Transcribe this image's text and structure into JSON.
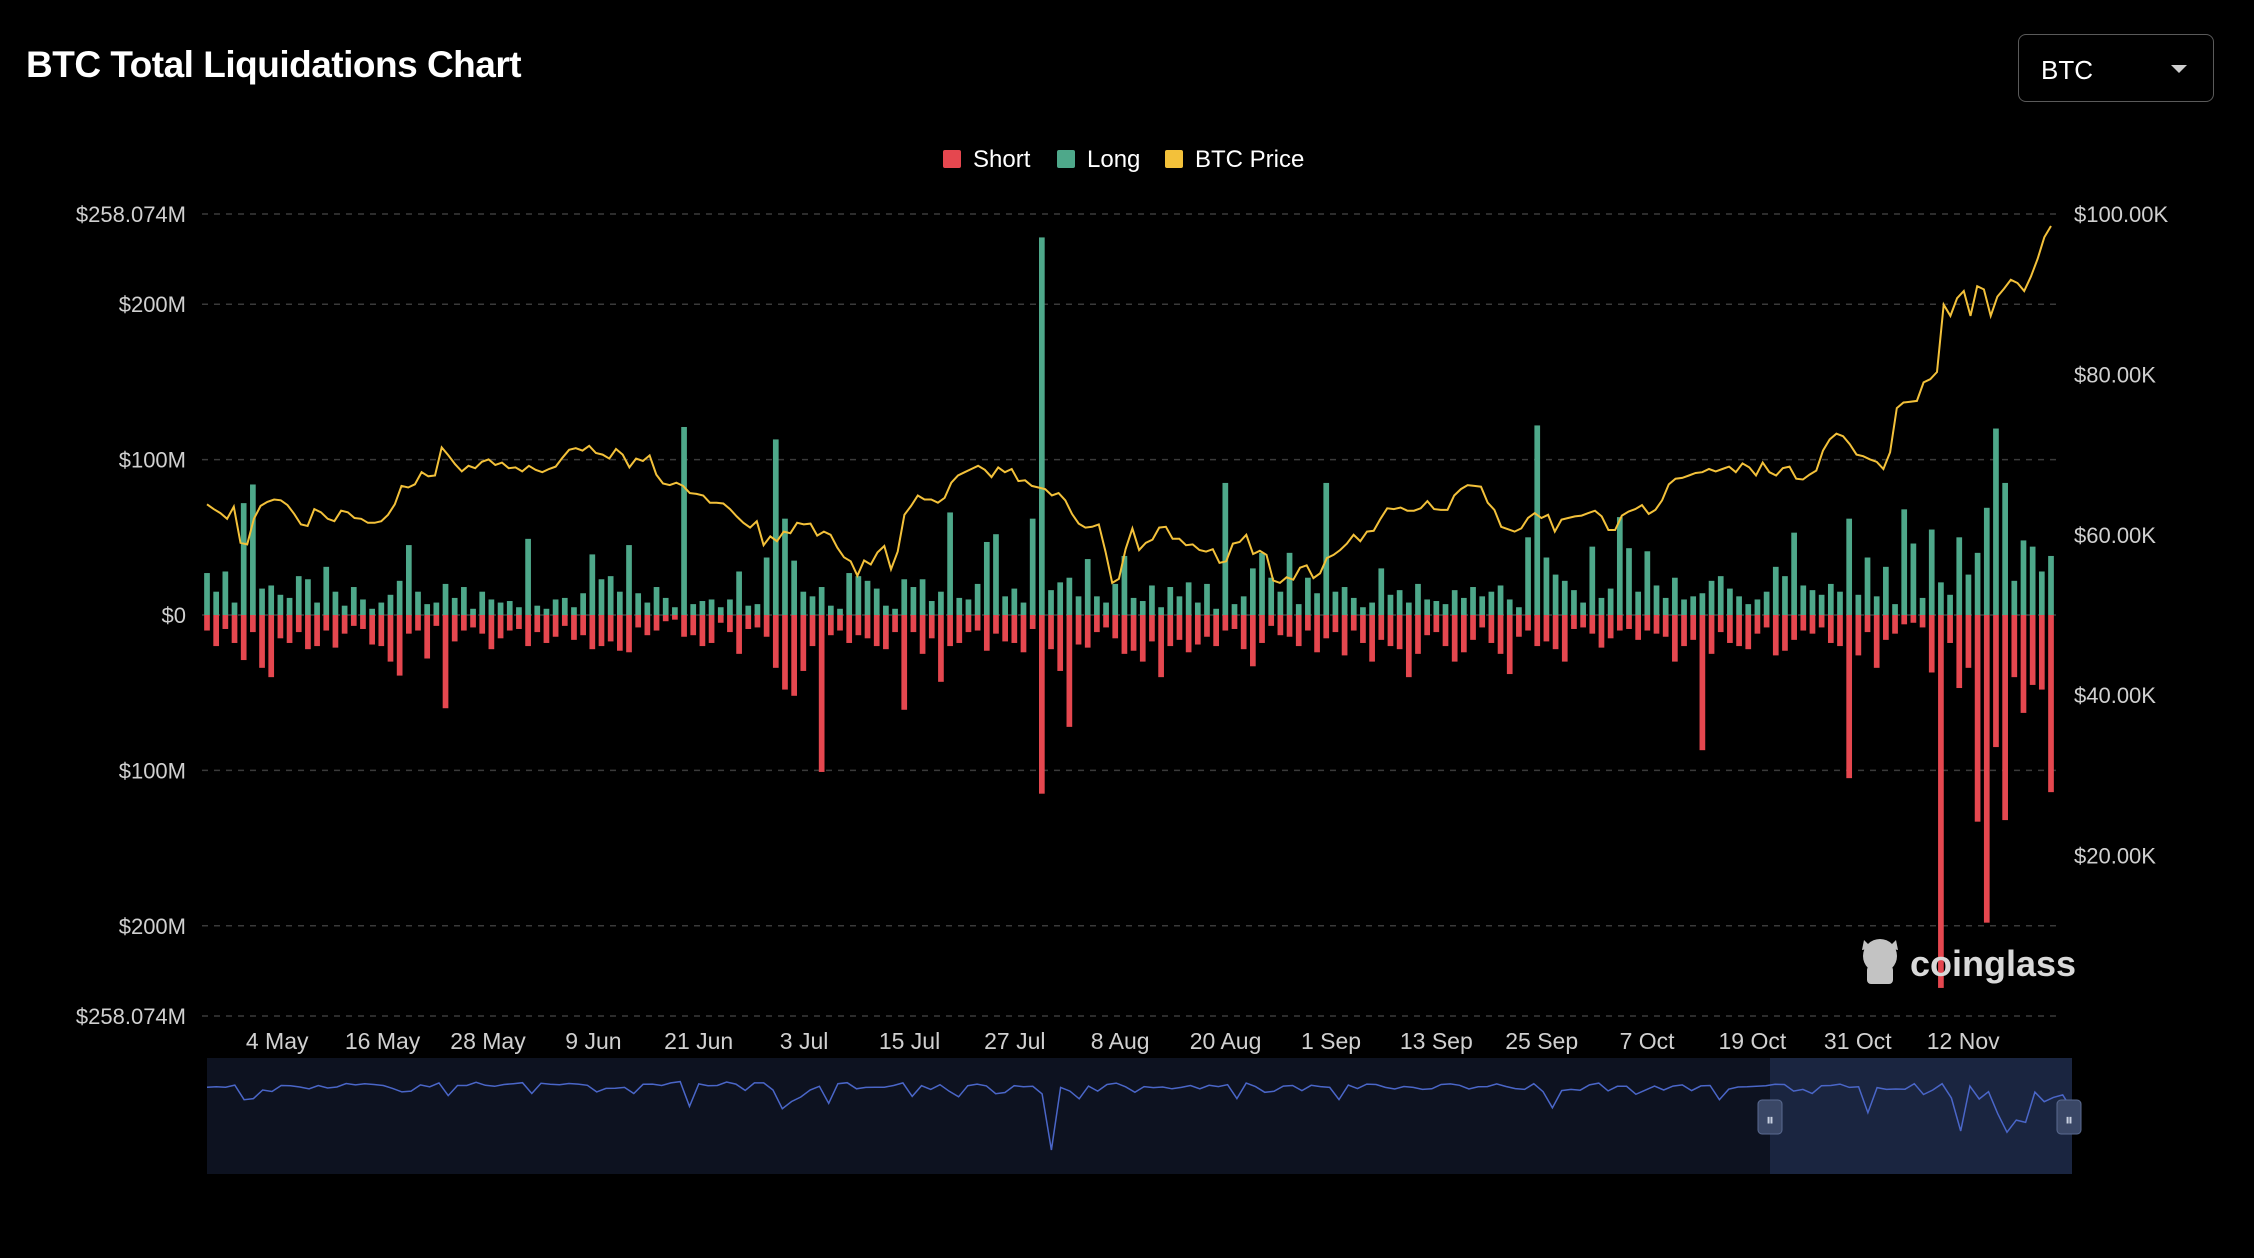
{
  "page": {
    "title": "BTC Total Liquidations Chart",
    "coin_select": {
      "value": "BTC"
    },
    "watermark": "coinglass"
  },
  "colors": {
    "short": "#e5474f",
    "long": "#4ea88a",
    "price": "#f3c13a",
    "grid": "#3a3a3a",
    "navigator_line": "#4a66c8",
    "navigator_bg": "#0d1220",
    "navigator_sel": "#1a2540"
  },
  "chart_data": {
    "type": "bar",
    "legend": [
      {
        "name": "Short",
        "color": "#e5474f"
      },
      {
        "name": "Long",
        "color": "#4ea88a"
      },
      {
        "name": "BTC Price",
        "color": "#f3c13a"
      }
    ],
    "legend_position": "top-center",
    "left_axis": {
      "ticks": [
        "$258.074M",
        "$200M",
        "$100M",
        "$0",
        "$100M",
        "$200M",
        "$258.074M"
      ],
      "tick_values": [
        258.074,
        200,
        100,
        0,
        -100,
        -200,
        -258.074
      ],
      "range": [
        -258.074,
        258.074
      ],
      "unit": "USD millions (longs above zero, shorts below)"
    },
    "right_axis": {
      "ticks": [
        "$100.00K",
        "$80.00K",
        "$60.00K",
        "$40.00K",
        "$20.00K"
      ],
      "tick_values": [
        100000,
        80000,
        60000,
        40000,
        20000
      ],
      "range": [
        0,
        100000
      ]
    },
    "x_axis": {
      "start_date": "2024-04-26",
      "end_date": "2024-11-22",
      "ticks": [
        "4 May",
        "16 May",
        "28 May",
        "9 Jun",
        "21 Jun",
        "3 Jul",
        "15 Jul",
        "27 Jul",
        "8 Aug",
        "20 Aug",
        "1 Sep",
        "13 Sep",
        "25 Sep",
        "7 Oct",
        "19 Oct",
        "31 Oct",
        "12 Nov"
      ],
      "tick_dates": [
        "2024-05-04",
        "2024-05-16",
        "2024-05-28",
        "2024-06-09",
        "2024-06-21",
        "2024-07-03",
        "2024-07-15",
        "2024-07-27",
        "2024-08-08",
        "2024-08-20",
        "2024-09-01",
        "2024-09-13",
        "2024-09-25",
        "2024-10-07",
        "2024-10-19",
        "2024-10-31",
        "2024-11-12"
      ]
    },
    "grid": true,
    "series": [
      {
        "name": "Long",
        "values": [
          27,
          15,
          28,
          8,
          72,
          84,
          17,
          19,
          13,
          11,
          25,
          23,
          8,
          31,
          15,
          6,
          18,
          10,
          4,
          8,
          13,
          22,
          45,
          15,
          7,
          8,
          20,
          11,
          18,
          4,
          15,
          10,
          8,
          9,
          5,
          49,
          6,
          4,
          10,
          11,
          5,
          14,
          39,
          23,
          25,
          15,
          45,
          14,
          8,
          18,
          11,
          5,
          121,
          7,
          9,
          10,
          5,
          10,
          28,
          6,
          7,
          37,
          113,
          62,
          35,
          15,
          12,
          18,
          6,
          4,
          27,
          25,
          22,
          17,
          6,
          4,
          23,
          18,
          23,
          9,
          15,
          66,
          11,
          10,
          20,
          47,
          52,
          12,
          17,
          8,
          62,
          243,
          16,
          21,
          24,
          12,
          36,
          12,
          8,
          20,
          38,
          11,
          9,
          19,
          5,
          18,
          12,
          21,
          8,
          20,
          4,
          85,
          7,
          12,
          30,
          40,
          24,
          15,
          40,
          7,
          24,
          14,
          85,
          15,
          18,
          11,
          5,
          8,
          30,
          13,
          16,
          8,
          20,
          10,
          9,
          7,
          16,
          11,
          18,
          12,
          15,
          19,
          10,
          5,
          50,
          122,
          37,
          26,
          22,
          16,
          8,
          44,
          11,
          17,
          63,
          43,
          15,
          41,
          19,
          11,
          24,
          10,
          12,
          14,
          22,
          25,
          17,
          12,
          7,
          10,
          15,
          31,
          25,
          53,
          19,
          16,
          13,
          20,
          15,
          62,
          13,
          37,
          12,
          31,
          7,
          68,
          46,
          11,
          55,
          21,
          13,
          50,
          26,
          40,
          69,
          120,
          85,
          22,
          48,
          44,
          28,
          38
        ],
        "sign": "above zero"
      },
      {
        "name": "Short",
        "values": [
          10,
          20,
          9,
          18,
          29,
          11,
          34,
          40,
          15,
          18,
          11,
          22,
          20,
          10,
          21,
          12,
          7,
          9,
          19,
          20,
          30,
          39,
          12,
          10,
          28,
          7,
          60,
          17,
          10,
          8,
          12,
          22,
          15,
          10,
          9,
          20,
          11,
          18,
          14,
          7,
          16,
          13,
          22,
          20,
          17,
          23,
          24,
          8,
          13,
          10,
          4,
          3,
          14,
          13,
          20,
          18,
          5,
          11,
          25,
          9,
          8,
          14,
          34,
          48,
          52,
          36,
          20,
          101,
          13,
          10,
          18,
          13,
          15,
          20,
          22,
          11,
          61,
          11,
          25,
          15,
          43,
          20,
          18,
          11,
          10,
          23,
          12,
          17,
          18,
          24,
          9,
          115,
          22,
          36,
          72,
          19,
          21,
          11,
          8,
          15,
          25,
          23,
          30,
          17,
          40,
          20,
          16,
          24,
          19,
          14,
          20,
          10,
          9,
          22,
          33,
          18,
          7,
          13,
          14,
          20,
          10,
          24,
          15,
          11,
          26,
          10,
          18,
          30,
          16,
          20,
          22,
          40,
          25,
          13,
          11,
          20,
          30,
          24,
          16,
          8,
          18,
          25,
          38,
          14,
          10,
          20,
          17,
          22,
          30,
          9,
          8,
          12,
          21,
          15,
          10,
          9,
          16,
          10,
          12,
          14,
          30,
          20,
          16,
          87,
          25,
          11,
          18,
          20,
          22,
          12,
          8,
          26,
          23,
          16,
          10,
          12,
          8,
          18,
          20,
          105,
          26,
          11,
          34,
          16,
          12,
          6,
          5,
          8,
          37,
          240,
          18,
          47,
          34,
          133,
          198,
          85,
          132,
          40,
          63,
          45,
          48,
          114
        ],
        "sign": "below zero"
      },
      {
        "name": "BTC Price",
        "values": [
          63800,
          63200,
          62700,
          62000,
          63500,
          59000,
          58800,
          62000,
          63600,
          64100,
          64400,
          64300,
          63700,
          62600,
          61300,
          61100,
          63200,
          62800,
          62000,
          61700,
          63000,
          62800,
          62100,
          62000,
          61500,
          61500,
          61700,
          62500,
          63800,
          66100,
          65900,
          66300,
          67800,
          67300,
          67400,
          70900,
          69900,
          68800,
          67900,
          68600,
          68300,
          69100,
          69400,
          68700,
          69000,
          68300,
          68400,
          67900,
          68600,
          68100,
          67800,
          68200,
          68500,
          69600,
          70600,
          70800,
          70500,
          71100,
          70200,
          70000,
          69500,
          70700,
          70000,
          68400,
          69500,
          69200,
          69900,
          67500,
          66400,
          66200,
          66500,
          66100,
          65200,
          65100,
          64900,
          64000,
          64000,
          63900,
          63200,
          62300,
          61500,
          60900,
          61700,
          58700,
          59800,
          59200,
          60400,
          60200,
          61500,
          61300,
          61400,
          59900,
          60400,
          60000,
          58400,
          57200,
          56700,
          54900,
          56800,
          56300,
          57800,
          58600,
          55700,
          57900,
          62500,
          63600,
          64900,
          64400,
          64400,
          64000,
          64600,
          66500,
          67400,
          67800,
          68200,
          68600,
          68100,
          67200,
          68400,
          67800,
          68200,
          66700,
          66800,
          66100,
          65900,
          65700,
          64900,
          65200,
          64300,
          62600,
          61400,
          60900,
          61000,
          61300,
          57900,
          54000,
          54500,
          58200,
          60800,
          58100,
          59000,
          59400,
          60900,
          61000,
          59500,
          59500,
          58700,
          58800,
          58100,
          57900,
          58200,
          56500,
          56700,
          58900,
          59100,
          60000,
          57600,
          58000,
          57500,
          54300,
          54000,
          54700,
          54400,
          55900,
          56200,
          54600,
          55200,
          57100,
          57500,
          58100,
          58900,
          60000,
          59200,
          60400,
          60500,
          62000,
          63300,
          63200,
          63400,
          63000,
          63000,
          63300,
          64200,
          63200,
          63100,
          63100,
          64900,
          65700,
          66200,
          66100,
          66000,
          64000,
          63100,
          61000,
          60700,
          60400,
          60800,
          62100,
          62700,
          62100,
          62500,
          60400,
          61900,
          62100,
          62300,
          62400,
          62700,
          63000,
          62300,
          60600,
          60600,
          62400,
          62900,
          63200,
          63700,
          62600,
          63100,
          64300,
          66300,
          67000,
          67100,
          67400,
          67700,
          67800,
          68200,
          67900,
          68200,
          68500,
          67800,
          68900,
          68400,
          67400,
          69000,
          67800,
          67400,
          68300,
          68500,
          67000,
          66900,
          67500,
          68000,
          70500,
          71900,
          72600,
          72300,
          71300,
          70000,
          69800,
          69400,
          69100,
          68200,
          70300,
          75800,
          76500,
          76600,
          76700,
          79000,
          79400,
          80300,
          88700,
          87300,
          89500,
          90400,
          87300,
          91000,
          90600,
          87300,
          89700,
          90700,
          91800,
          91400,
          90400,
          92200,
          94400,
          97100,
          98500
        ]
      }
    ]
  },
  "navigator": {
    "handle_left_glyph": "⏸",
    "handle_right_glyph": "⏸"
  }
}
